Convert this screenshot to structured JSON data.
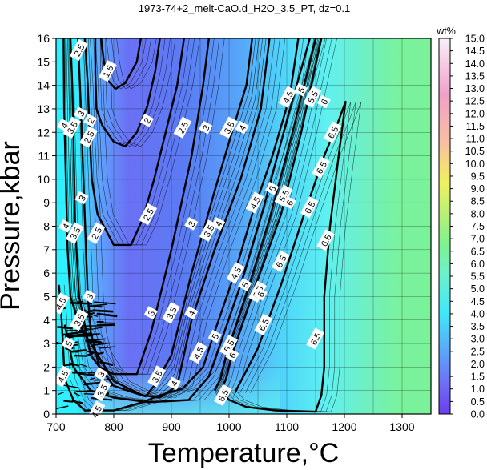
{
  "chart_data": {
    "type": "contour",
    "title": "1973-74+2_melt-CaO.d_H2O_3.5_PT, dz=0.1",
    "xlabel": "Temperature,°C",
    "ylabel": "Pressure,kbar",
    "xlim": [
      700,
      1350
    ],
    "ylim": [
      0,
      16
    ],
    "x_ticks": [
      "700",
      "800",
      "900",
      "1000",
      "1100",
      "1200",
      "1300"
    ],
    "y_ticks": [
      "0",
      "1",
      "2",
      "3",
      "4",
      "5",
      "6",
      "7",
      "8",
      "9",
      "10",
      "11",
      "12",
      "13",
      "14",
      "15",
      "16"
    ],
    "grid": true,
    "colorbar": {
      "title": "wt%",
      "min": 0.0,
      "max": 15.0,
      "labels": [
        "0.0",
        "0.5",
        "1.0",
        "1.5",
        "2.0",
        "2.5",
        "3.0",
        "3.5",
        "4.0",
        "4.5",
        "5.0",
        "5.5",
        "6.0",
        "6.5",
        "7.0",
        "7.5",
        "8.0",
        "8.5",
        "9.0",
        "9.5",
        "10.0",
        "10.5",
        "11.0",
        "11.5",
        "12.0",
        "12.5",
        "13.0",
        "13.5",
        "14.0",
        "14.5",
        "15.0"
      ]
    },
    "plateau_value": 6.8,
    "contours": [
      {
        "level": "1.5",
        "points": [
          [
            778,
            16
          ],
          [
            783,
            15
          ],
          [
            790,
            14.2
          ],
          [
            803,
            13.85
          ],
          [
            820,
            14.1
          ],
          [
            840,
            15
          ],
          [
            847,
            16
          ]
        ],
        "labels": [
          [
            790,
            14.6
          ]
        ]
      },
      {
        "level": "2",
        "points": [
          [
            768,
            16
          ],
          [
            768,
            14.5
          ],
          [
            770,
            13
          ],
          [
            780,
            12.3
          ],
          [
            800,
            11.6
          ],
          [
            820,
            11.4
          ],
          [
            840,
            12
          ],
          [
            858,
            13.1
          ],
          [
            872,
            14.6
          ],
          [
            880,
            16
          ]
        ],
        "labels": [
          [
            760,
            12.5
          ],
          [
            858,
            12.5
          ]
        ]
      },
      {
        "level": "2.5",
        "points": [
          [
            750,
            16
          ],
          [
            755,
            14
          ],
          [
            758,
            12
          ],
          [
            762,
            10
          ],
          [
            772,
            8.5
          ],
          [
            800,
            7.2
          ],
          [
            830,
            7.2
          ],
          [
            850,
            8.3
          ],
          [
            870,
            10
          ],
          [
            890,
            12
          ],
          [
            910,
            14
          ],
          [
            922,
            16
          ]
        ],
        "labels": [
          [
            740,
            15.5
          ],
          [
            757,
            11.8
          ],
          [
            770,
            7.7
          ],
          [
            860,
            8.5
          ],
          [
            920,
            12.2
          ]
        ]
      },
      {
        "level": "3",
        "points": [
          [
            738,
            16
          ],
          [
            743,
            13
          ],
          [
            748,
            9.5
          ],
          [
            755,
            5
          ],
          [
            760,
            3.5
          ],
          [
            775,
            2
          ],
          [
            800,
            1.7
          ],
          [
            840,
            1.7
          ],
          [
            865,
            3.5
          ],
          [
            900,
            7
          ],
          [
            935,
            11
          ],
          [
            955,
            14
          ],
          [
            965,
            16
          ]
        ],
        "labels": [
          [
            743,
            12.8
          ],
          [
            745,
            9.2
          ],
          [
            758,
            5
          ],
          [
            778,
            1.7
          ],
          [
            865,
            4.3
          ],
          [
            935,
            8.1
          ],
          [
            960,
            12.2
          ]
        ]
      },
      {
        "level": "3.5",
        "points": [
          [
            725,
            16
          ],
          [
            728,
            14
          ],
          [
            730,
            12
          ],
          [
            733,
            8
          ],
          [
            740,
            5
          ],
          [
            760,
            2.5
          ],
          [
            800,
            1.2
          ],
          [
            830,
            0.95
          ],
          [
            855,
            0.75
          ],
          [
            870,
            1.2
          ],
          [
            900,
            2.5
          ],
          [
            935,
            6
          ],
          [
            975,
            9.5
          ],
          [
            1005,
            12
          ],
          [
            1030,
            14
          ],
          [
            1040,
            16
          ]
        ],
        "labels": [
          [
            728,
            12.2
          ],
          [
            733,
            7.7
          ],
          [
            740,
            4
          ],
          [
            780,
            1.0
          ],
          [
            875,
            1.6
          ],
          [
            900,
            4.3
          ],
          [
            965,
            7.8
          ],
          [
            1000,
            12.2
          ]
        ]
      },
      {
        "level": "4",
        "points": [
          [
            713,
            16
          ],
          [
            714,
            13
          ],
          [
            717,
            10
          ],
          [
            720,
            7
          ],
          [
            725,
            5
          ],
          [
            740,
            3.8
          ],
          [
            760,
            3
          ],
          [
            800,
            1.4
          ],
          [
            850,
            0.8
          ],
          [
            880,
            0.7
          ],
          [
            910,
            1.2
          ],
          [
            935,
            4
          ],
          [
            975,
            7
          ],
          [
            1020,
            10
          ],
          [
            1055,
            13
          ],
          [
            1070,
            16
          ]
        ],
        "labels": [
          [
            714,
            12.3
          ],
          [
            717,
            8
          ],
          [
            905,
            1.3
          ],
          [
            935,
            4.3
          ],
          [
            982,
            8.1
          ],
          [
            1023,
            12.2
          ]
        ]
      },
      {
        "level": "4.5",
        "points": [
          [
            705,
            5.5
          ],
          [
            708,
            4.7
          ],
          [
            712,
            3
          ],
          [
            715,
            1.5
          ],
          [
            730,
            0.6
          ],
          [
            750,
            0.15
          ],
          [
            800,
            0.15
          ],
          [
            850,
            0.5
          ],
          [
            880,
            0.8
          ],
          [
            920,
            1.1
          ],
          [
            955,
            2
          ],
          [
            975,
            3.5
          ],
          [
            1010,
            6
          ],
          [
            1040,
            8.5
          ],
          [
            1075,
            11
          ],
          [
            1105,
            13.5
          ],
          [
            1120,
            16
          ]
        ],
        "labels": [
          [
            708,
            4.7
          ],
          [
            712,
            1.6
          ],
          [
            770,
            0.1
          ],
          [
            947,
            2.6
          ],
          [
            1012,
            6
          ],
          [
            1045,
            9
          ],
          [
            1102,
            13.5
          ]
        ]
      },
      {
        "level": "5",
        "points": [
          [
            715,
            3.8
          ],
          [
            722,
            3
          ],
          [
            730,
            2
          ],
          [
            760,
            1
          ],
          [
            800,
            0.7
          ],
          [
            860,
            0.5
          ],
          [
            930,
            0.6
          ],
          [
            965,
            1.6
          ],
          [
            985,
            3
          ],
          [
            1020,
            5.5
          ],
          [
            1060,
            8.8
          ],
          [
            1100,
            12.5
          ],
          [
            1140,
            16
          ]
        ],
        "labels": [
          [
            722,
            3.0
          ],
          [
            976,
            3.3
          ],
          [
            1028,
            5.5
          ],
          [
            1075,
            9.6
          ],
          [
            1125,
            13.8
          ]
        ]
      },
      {
        "level": "5.5",
        "points": [
          [
            975,
            1
          ],
          [
            985,
            1.5
          ],
          [
            995,
            2.5
          ],
          [
            1035,
            5.5
          ],
          [
            1070,
            8.3
          ],
          [
            1110,
            12
          ],
          [
            1150,
            16
          ]
        ],
        "labels": [
          [
            1000,
            2.9
          ],
          [
            1050,
            5.2
          ],
          [
            1095,
            9.3
          ],
          [
            1145,
            13.5
          ]
        ]
      },
      {
        "level": "6",
        "points": [
          [
            980,
            0.7
          ],
          [
            995,
            1.5
          ],
          [
            1005,
            2.5
          ],
          [
            1045,
            5.4
          ],
          [
            1090,
            8.5
          ],
          [
            1125,
            12
          ],
          [
            1160,
            16
          ]
        ],
        "labels": [
          [
            1006,
            2.5
          ],
          [
            1055,
            5.1
          ],
          [
            1105,
            9.0
          ],
          [
            1165,
            13.3
          ]
        ]
      },
      {
        "level": "6.5",
        "points": [
          [
            985,
            1
          ],
          [
            1000,
            0.6
          ],
          [
            1030,
            0.3
          ],
          [
            1080,
            0.15
          ],
          [
            1150,
            0.1
          ],
          [
            1160,
            0.8
          ],
          [
            1165,
            2
          ],
          [
            1165,
            5
          ],
          [
            1175,
            8
          ],
          [
            1190,
            11
          ],
          [
            1202,
            13.3
          ],
          [
            1190,
            12.5
          ],
          [
            1165,
            11
          ],
          [
            1130,
            8.5
          ],
          [
            1090,
            5.5
          ],
          [
            1050,
            2.8
          ],
          [
            1010,
            0.9
          ]
        ],
        "labels": [
          [
            990,
            0.8
          ],
          [
            1060,
            3.8
          ],
          [
            1090,
            6.5
          ],
          [
            1140,
            8.8
          ],
          [
            1160,
            10.5
          ],
          [
            1180,
            12
          ],
          [
            1168,
            7.4
          ],
          [
            1150,
            3.2
          ]
        ]
      }
    ]
  }
}
